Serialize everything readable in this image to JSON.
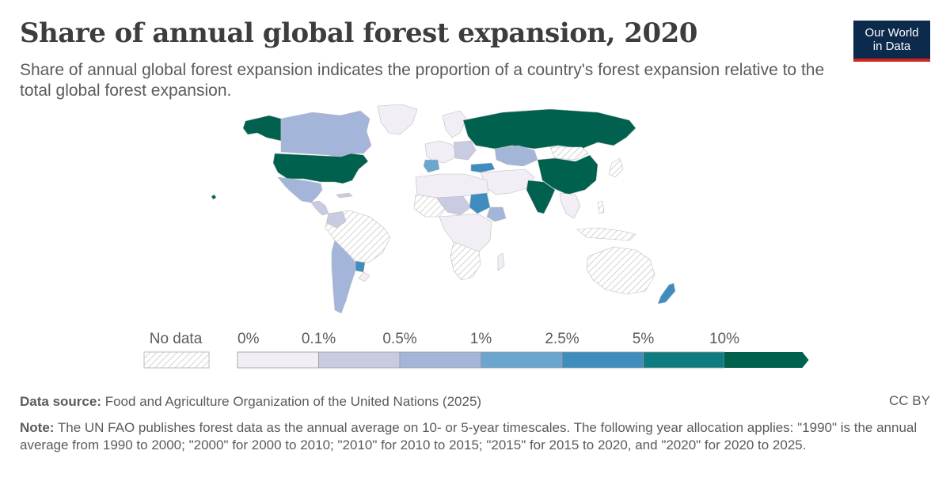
{
  "header": {
    "title": "Share of annual global forest expansion, 2020",
    "subtitle": "Share of annual global forest expansion indicates the proportion of a country's forest expansion relative to the total global forest expansion."
  },
  "logo": {
    "line1": "Our World",
    "line2": "in Data"
  },
  "legend": {
    "no_data_label": "No data",
    "bins": [
      "0%",
      "0.1%",
      "0.5%",
      "1%",
      "2.5%",
      "5%",
      "10%"
    ],
    "colors": [
      "#f1eef6",
      "#c9cbe3",
      "#a3b5d9",
      "#6ba6d1",
      "#3f8dbf",
      "#0e7c81",
      "#00624e"
    ],
    "no_data_pattern": "hatched-gray"
  },
  "map_colors": {
    "ocean": "#ffffff",
    "border": "#bdbdbd",
    "no_data": "#e6e6e6",
    "lowest": "#f1eef6",
    "low": "#c9cbe3",
    "mid": "#a3b5d9",
    "high": "#6ba6d1",
    "higher": "#3f8dbf",
    "top": "#00624e"
  },
  "footer": {
    "source_label": "Data source:",
    "source_text": "Food and Agriculture Organization of the United Nations (2025)",
    "license": "CC BY",
    "note_label": "Note:",
    "note_text": "The UN FAO publishes forest data as the annual average on 10- or 5-year timescales. The following year allocation applies: \"1990\" is the annual average from 1990 to 2000; \"2000\" for 2000 to 2010; \"2010\" for 2010 to 2015; \"2015\" for 2015 to 2020, and \"2020\" for 2020 to 2025."
  }
}
